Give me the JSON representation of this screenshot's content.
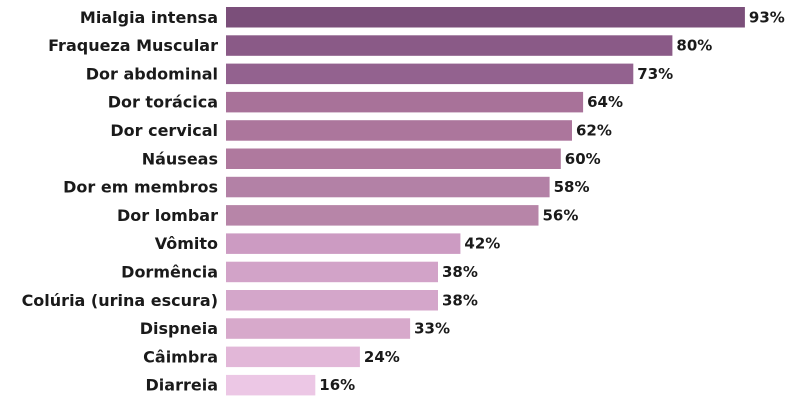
{
  "chart_data": {
    "type": "bar",
    "orientation": "horizontal",
    "categories": [
      "Mialgia intensa",
      "Fraqueza Muscular",
      "Dor  abdominal",
      "Dor torácica",
      "Dor cervical",
      "Náuseas",
      "Dor em membros",
      "Dor lombar",
      "Vômito",
      "Dormência",
      "Colúria (urina escura)",
      "Dispneia",
      "Câimbra",
      "Diarreia"
    ],
    "values": [
      93,
      80,
      73,
      64,
      62,
      60,
      58,
      56,
      42,
      38,
      38,
      33,
      24,
      16
    ],
    "value_labels": [
      "93%",
      "80%",
      "73%",
      "64%",
      "62%",
      "60%",
      "58%",
      "56%",
      "42%",
      "38%",
      "38%",
      "33%",
      "24%",
      "16%"
    ],
    "unit": "%",
    "xlim": [
      0,
      100
    ],
    "grid": false,
    "legend": "none",
    "colors": [
      "#7b4f7a",
      "#8a5a87",
      "#93628f",
      "#a87299",
      "#ac769c",
      "#af799e",
      "#b381a6",
      "#b785a8",
      "#cc9bc2",
      "#d2a3c8",
      "#d4a6ca",
      "#d7a9cb",
      "#e2b7d8",
      "#ecc7e5"
    ],
    "title": "",
    "xlabel": "",
    "ylabel": ""
  }
}
